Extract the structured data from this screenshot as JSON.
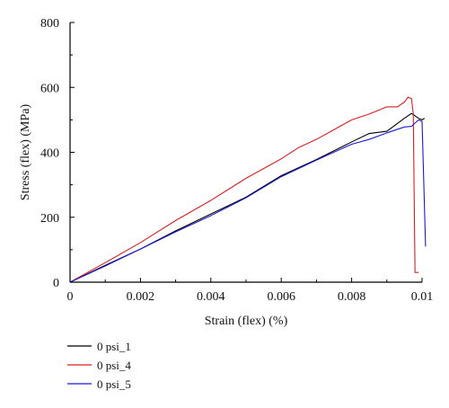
{
  "chart_data": {
    "type": "line",
    "xlabel": "Strain (flex) (%)",
    "ylabel": "Stress (flex) (MPa)",
    "xlim": [
      0,
      0.01
    ],
    "ylim": [
      0,
      800
    ],
    "x_ticks": [
      "0",
      "0.002",
      "0.004",
      "0.006",
      "0.008",
      "0.01"
    ],
    "y_ticks": [
      "0",
      "200",
      "400",
      "600",
      "800"
    ],
    "grid": false,
    "legend_position": "bottom-left, below plot",
    "series": [
      {
        "name": "0 psi_1",
        "color": "#000000",
        "points": [
          [
            0,
            0
          ],
          [
            0.001,
            52
          ],
          [
            0.002,
            102
          ],
          [
            0.003,
            158
          ],
          [
            0.004,
            210
          ],
          [
            0.005,
            262
          ],
          [
            0.006,
            328
          ],
          [
            0.007,
            378
          ],
          [
            0.008,
            432
          ],
          [
            0.0085,
            458
          ],
          [
            0.009,
            465
          ],
          [
            0.0095,
            505
          ],
          [
            0.0097,
            520
          ],
          [
            0.0099,
            505
          ],
          [
            0.01,
            500
          ],
          [
            0.01007,
            505
          ]
        ]
      },
      {
        "name": "0 psi_4",
        "color": "#d62020",
        "points": [
          [
            0,
            0
          ],
          [
            0.001,
            60
          ],
          [
            0.002,
            122
          ],
          [
            0.003,
            190
          ],
          [
            0.004,
            252
          ],
          [
            0.005,
            320
          ],
          [
            0.006,
            380
          ],
          [
            0.0065,
            415
          ],
          [
            0.007,
            440
          ],
          [
            0.0075,
            470
          ],
          [
            0.008,
            500
          ],
          [
            0.0085,
            518
          ],
          [
            0.009,
            540
          ],
          [
            0.0093,
            540
          ],
          [
            0.0095,
            555
          ],
          [
            0.0096,
            570
          ],
          [
            0.0097,
            565
          ],
          [
            0.00975,
            520
          ],
          [
            0.0098,
            30
          ],
          [
            0.0099,
            30
          ]
        ]
      },
      {
        "name": "0 psi_5",
        "color": "#1a1ad6",
        "points": [
          [
            0,
            0
          ],
          [
            0.001,
            50
          ],
          [
            0.002,
            102
          ],
          [
            0.003,
            155
          ],
          [
            0.004,
            205
          ],
          [
            0.005,
            260
          ],
          [
            0.006,
            325
          ],
          [
            0.007,
            376
          ],
          [
            0.008,
            425
          ],
          [
            0.0085,
            440
          ],
          [
            0.009,
            460
          ],
          [
            0.0095,
            478
          ],
          [
            0.0097,
            480
          ],
          [
            0.0099,
            500
          ],
          [
            0.01,
            495
          ],
          [
            0.0101,
            110
          ]
        ]
      }
    ]
  }
}
